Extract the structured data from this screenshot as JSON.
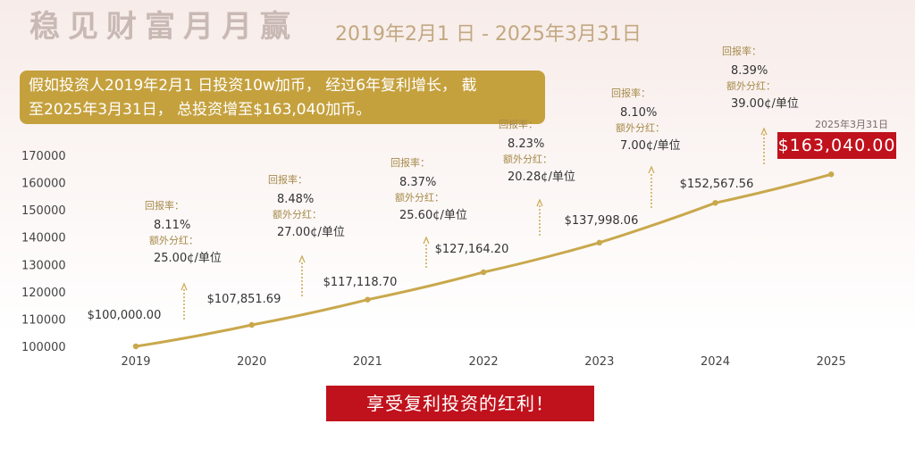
{
  "header": {
    "title": "稳见财富月月赢",
    "date_range": "2019年2月1 日 - 2025年3月31日"
  },
  "info_box": {
    "line1": "假如投资人2019年2月1 日投资10w加币， 经过6年复利增长， 截",
    "line2": "至2025年3月31日， 总投资增至$163,040加币。"
  },
  "final": {
    "date": "2025年3月31日",
    "value": "$163,040.00"
  },
  "banner": "享受复利投资的红利！",
  "annotations": [
    {
      "return_label": "回报率：",
      "return_value": "8.11%",
      "dividend_label": "额外分红：",
      "dividend_value": "25.00¢/单位"
    },
    {
      "return_label": "回报率：",
      "return_value": "8.48%",
      "dividend_label": "额外分红：",
      "dividend_value": "27.00¢/单位"
    },
    {
      "return_label": "回报率：",
      "return_value": "8.37%",
      "dividend_label": "额外分红：",
      "dividend_value": "25.60¢/单位"
    },
    {
      "return_label": "回报率：",
      "return_value": "8.23%",
      "dividend_label": "额外分红：",
      "dividend_value": "20.28¢/单位"
    },
    {
      "return_label": "回报率：",
      "return_value": "8.10%",
      "dividend_label": "额外分红：",
      "dividend_value": "7.00¢/单位"
    },
    {
      "return_label": "回报率：",
      "return_value": "8.39%",
      "dividend_label": "额外分红：",
      "dividend_value": "39.00¢/单位"
    }
  ],
  "colors": {
    "line": "#c9a84c",
    "accent_red": "#c0121c",
    "gold_box": "#c5a13e"
  },
  "chart_data": {
    "type": "line",
    "title": "",
    "xlabel": "",
    "ylabel": "",
    "x": [
      "2019",
      "2020",
      "2021",
      "2022",
      "2023",
      "2024",
      "2025"
    ],
    "y": [
      100000.0,
      107851.69,
      117118.7,
      127164.2,
      137998.06,
      152567.56,
      163040.0
    ],
    "point_labels": [
      "$100,000.00",
      "$107,851.69",
      "$117,118.70",
      "$127,164.20",
      "$137,998.06",
      "$152,567.56",
      ""
    ],
    "yticks": [
      "170000",
      "160000",
      "150000",
      "140000",
      "130000",
      "120000",
      "110000",
      "100000"
    ],
    "ylim": [
      100000,
      170000
    ],
    "grid": false,
    "legend": "none"
  }
}
